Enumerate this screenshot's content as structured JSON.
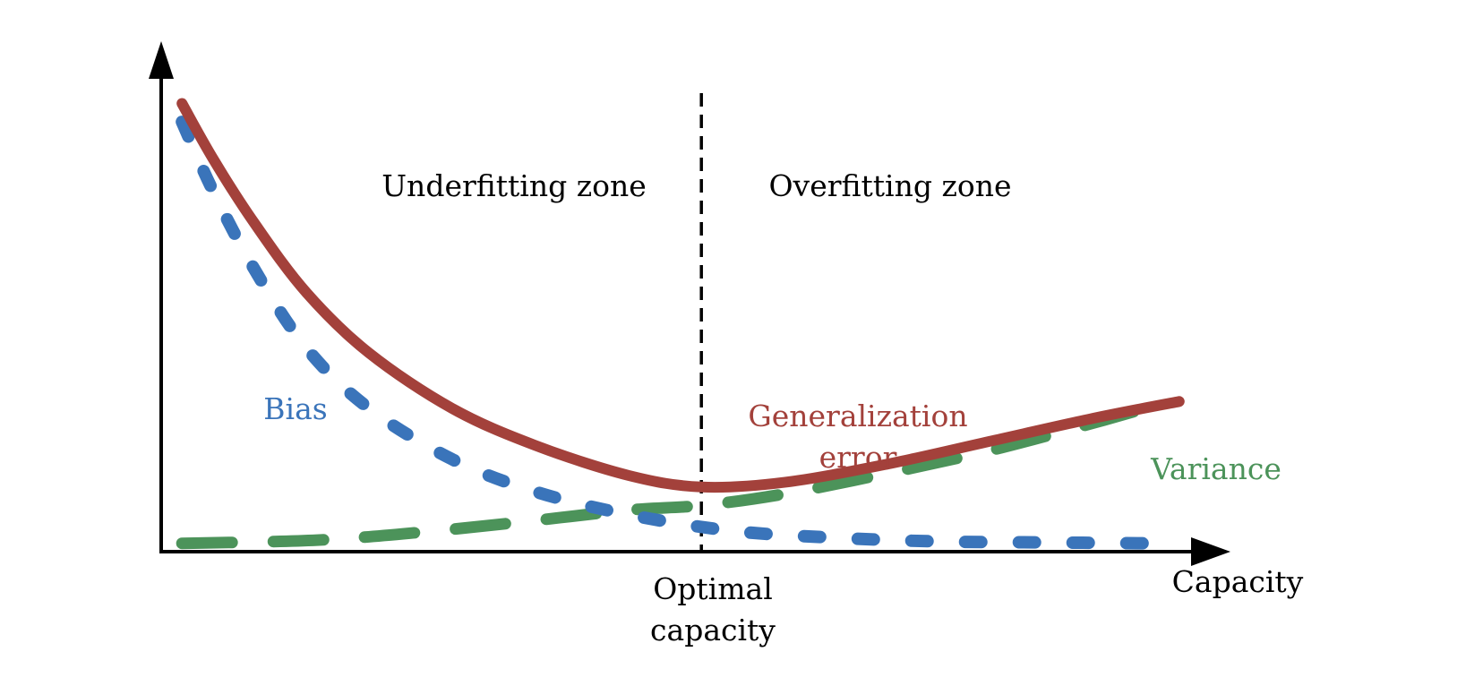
{
  "chart_data": {
    "type": "line",
    "title": "",
    "xlabel": "Capacity",
    "ylabel": "",
    "grid": false,
    "xlim": [
      0,
      10
    ],
    "ylim": [
      0,
      10
    ],
    "annotations": {
      "underfitting": "Underfitting zone",
      "overfitting": "Overfitting zone",
      "optimal_line1": "Optimal",
      "optimal_line2": "capacity",
      "optimal_x": 5.2
    },
    "series": [
      {
        "name": "Bias",
        "color": "#3a74ba",
        "style": "dotted",
        "x": [
          0.2,
          0.5,
          0.9,
          1.4,
          2.0,
          2.8,
          3.6,
          4.5,
          5.5,
          6.5,
          7.5,
          8.5,
          9.5
        ],
        "y": [
          9.3,
          7.8,
          6.1,
          4.4,
          3.1,
          2.0,
          1.3,
          0.8,
          0.45,
          0.3,
          0.22,
          0.2,
          0.18
        ]
      },
      {
        "name": "Generalization error",
        "label_line1": "Generalization",
        "label_line2": "error",
        "color": "#a3413b",
        "style": "solid",
        "x": [
          0.2,
          0.5,
          0.9,
          1.4,
          2.0,
          2.8,
          3.6,
          4.5,
          5.2,
          6.0,
          7.0,
          8.0,
          9.0,
          9.8
        ],
        "y": [
          9.7,
          8.5,
          7.1,
          5.6,
          4.3,
          3.1,
          2.3,
          1.65,
          1.4,
          1.5,
          1.9,
          2.4,
          2.9,
          3.25
        ]
      },
      {
        "name": "Variance",
        "color": "#4c935a",
        "style": "dashed",
        "x": [
          0.2,
          1.5,
          2.5,
          3.5,
          4.5,
          5.2,
          6.0,
          7.0,
          8.0,
          9.0,
          9.7
        ],
        "y": [
          0.18,
          0.25,
          0.42,
          0.65,
          0.9,
          1.0,
          1.25,
          1.7,
          2.2,
          2.8,
          3.25
        ]
      }
    ]
  }
}
